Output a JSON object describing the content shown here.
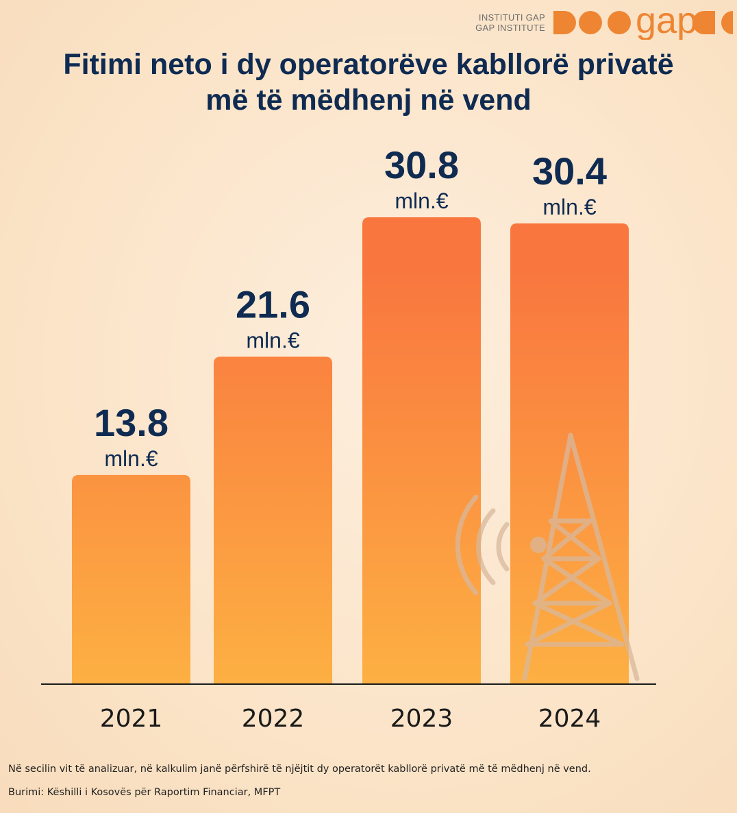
{
  "logo": {
    "line1": "INSTITUTI GAP",
    "line2": "GAP INSTITUTE",
    "wordmark": "gap"
  },
  "title": {
    "line1": "Fitimi neto i dy operatorëve kabllorë privatë",
    "line2": "më të mëdhenj në vend"
  },
  "chart_data": {
    "type": "bar",
    "categories": [
      "2021",
      "2022",
      "2023",
      "2024"
    ],
    "values": [
      13.8,
      21.6,
      30.8,
      30.4
    ],
    "value_labels": [
      "13.8",
      "21.6",
      "30.8",
      "30.4"
    ],
    "unit_label": "mln.€",
    "ylim": [
      0,
      36
    ],
    "grid": false,
    "legend": "none"
  },
  "footnote": "Në secilin vit të analizuar, në kalkulim janë përfshirë të njëjtit dy operatorët kabllorë privatë më të mëdhenj në vend.",
  "source": "Burimi: Këshilli i Kosovës për Raportim Financiar, MFPT",
  "colors": {
    "title": "#0f2b52",
    "value_label": "#0f2b52",
    "bar_top": "#f9773f",
    "bar_bottom": "#fdb043",
    "logo_orange": "#ee8533",
    "background": "#fbe6cc"
  },
  "icons": [
    "antenna-tower-icon",
    "gap-logo"
  ]
}
